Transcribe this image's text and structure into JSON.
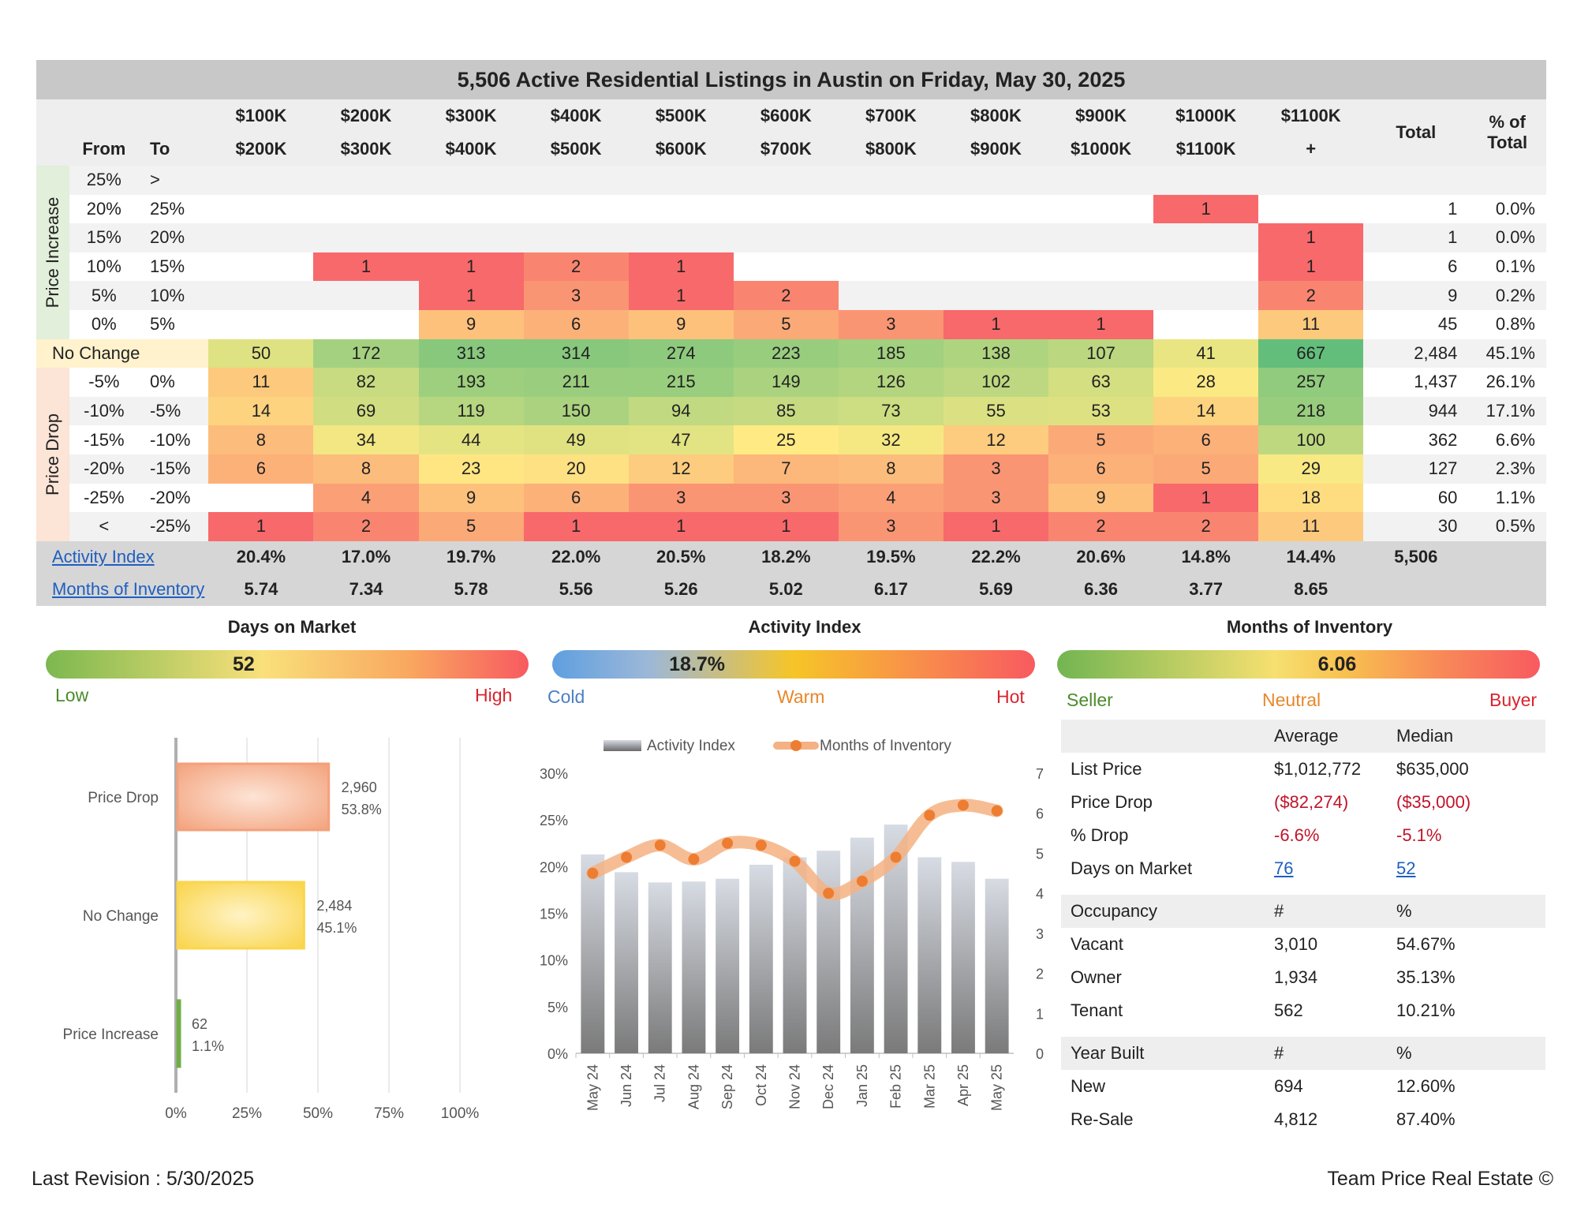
{
  "title": "5,506 Active Residential Listings in Austin on Friday, May 30, 2025",
  "header": {
    "from": "From",
    "to": "To",
    "ranges_top": [
      "$100K",
      "$200K",
      "$300K",
      "$400K",
      "$500K",
      "$600K",
      "$700K",
      "$800K",
      "$900K",
      "$1000K",
      "$1100K"
    ],
    "ranges_bottom": [
      "$200K",
      "$300K",
      "$400K",
      "$500K",
      "$600K",
      "$700K",
      "$800K",
      "$900K",
      "$1000K",
      "$1100K",
      "+"
    ],
    "total": "Total",
    "pct_top": "% of",
    "pct_bottom": "Total"
  },
  "side_labels": {
    "increase": "Price Increase",
    "drop": "Price Drop"
  },
  "rows": [
    {
      "from": "25%",
      "to": ">",
      "cells": [
        "",
        "",
        "",
        "",
        "",
        "",
        "",
        "",
        "",
        "",
        ""
      ],
      "total": "",
      "pct": ""
    },
    {
      "from": "20%",
      "to": "25%",
      "cells": [
        "",
        "",
        "",
        "",
        "",
        "",
        "",
        "",
        "",
        "1",
        ""
      ],
      "total": "1",
      "pct": "0.0%"
    },
    {
      "from": "15%",
      "to": "20%",
      "cells": [
        "",
        "",
        "",
        "",
        "",
        "",
        "",
        "",
        "",
        "",
        "1"
      ],
      "total": "1",
      "pct": "0.0%"
    },
    {
      "from": "10%",
      "to": "15%",
      "cells": [
        "",
        "1",
        "1",
        "2",
        "1",
        "",
        "",
        "",
        "",
        "",
        "1"
      ],
      "total": "6",
      "pct": "0.1%"
    },
    {
      "from": "5%",
      "to": "10%",
      "cells": [
        "",
        "",
        "1",
        "3",
        "1",
        "2",
        "",
        "",
        "",
        "",
        "2"
      ],
      "total": "9",
      "pct": "0.2%"
    },
    {
      "from": "0%",
      "to": "5%",
      "cells": [
        "",
        "",
        "9",
        "6",
        "9",
        "5",
        "3",
        "1",
        "1",
        "",
        "11"
      ],
      "total": "45",
      "pct": "0.8%"
    },
    {
      "from": "No Change",
      "to": "",
      "cells": [
        "50",
        "172",
        "313",
        "314",
        "274",
        "223",
        "185",
        "138",
        "107",
        "41",
        "667"
      ],
      "total": "2,484",
      "pct": "45.1%"
    },
    {
      "from": "-5%",
      "to": "0%",
      "cells": [
        "11",
        "82",
        "193",
        "211",
        "215",
        "149",
        "126",
        "102",
        "63",
        "28",
        "257"
      ],
      "total": "1,437",
      "pct": "26.1%"
    },
    {
      "from": "-10%",
      "to": "-5%",
      "cells": [
        "14",
        "69",
        "119",
        "150",
        "94",
        "85",
        "73",
        "55",
        "53",
        "14",
        "218"
      ],
      "total": "944",
      "pct": "17.1%"
    },
    {
      "from": "-15%",
      "to": "-10%",
      "cells": [
        "8",
        "34",
        "44",
        "49",
        "47",
        "25",
        "32",
        "12",
        "5",
        "6",
        "100"
      ],
      "total": "362",
      "pct": "6.6%"
    },
    {
      "from": "-20%",
      "to": "-15%",
      "cells": [
        "6",
        "8",
        "23",
        "20",
        "12",
        "7",
        "8",
        "3",
        "6",
        "5",
        "29"
      ],
      "total": "127",
      "pct": "2.3%"
    },
    {
      "from": "-25%",
      "to": "-20%",
      "cells": [
        "",
        "4",
        "9",
        "6",
        "3",
        "3",
        "4",
        "3",
        "9",
        "1",
        "18"
      ],
      "total": "60",
      "pct": "1.1%"
    },
    {
      "from": "<",
      "to": "-25%",
      "cells": [
        "1",
        "2",
        "5",
        "1",
        "1",
        "1",
        "3",
        "1",
        "2",
        "2",
        "11"
      ],
      "total": "30",
      "pct": "0.5%"
    }
  ],
  "activity": {
    "label": "Activity Index",
    "values": [
      "20.4%",
      "17.0%",
      "19.7%",
      "22.0%",
      "20.5%",
      "18.2%",
      "19.5%",
      "22.2%",
      "20.6%",
      "14.8%",
      "14.4%"
    ],
    "total": "5,506"
  },
  "inventory": {
    "label": "Months of Inventory",
    "values": [
      "5.74",
      "7.34",
      "5.78",
      "5.56",
      "5.26",
      "5.02",
      "6.17",
      "5.69",
      "6.36",
      "3.77",
      "8.65"
    ]
  },
  "gauges": {
    "dom": {
      "title": "Days on Market",
      "value": "52",
      "level": 0.41,
      "low": "Low",
      "high": "High"
    },
    "ai": {
      "title": "Activity Index",
      "value": "18.7%",
      "level": 0.3,
      "left": "Cold",
      "mid": "Warm",
      "right": "Hot"
    },
    "moi": {
      "title": "Months of Inventory",
      "value": "6.06",
      "level": 0.58,
      "left": "Seller",
      "mid": "Neutral",
      "right": "Buyer"
    }
  },
  "chart_data": [
    {
      "type": "bar",
      "orientation": "horizontal",
      "categories": [
        "Price Drop",
        "No Change",
        "Price Increase"
      ],
      "values": [
        53.8,
        45.1,
        1.1
      ],
      "counts": [
        "2,960",
        "2,484",
        "62"
      ],
      "pct_labels": [
        "53.8%",
        "45.1%",
        "1.1%"
      ],
      "xticks": [
        "0%",
        "25%",
        "50%",
        "75%",
        "100%"
      ],
      "xlim": [
        0,
        100
      ],
      "colors": [
        "#f4a07a",
        "#fcd54c",
        "#70ad47"
      ]
    },
    {
      "type": "bar+line",
      "categories": [
        "May 24",
        "Jun 24",
        "Jul 24",
        "Aug 24",
        "Sep 24",
        "Oct 24",
        "Nov 24",
        "Dec 24",
        "Jan 25",
        "Feb 25",
        "Mar 25",
        "Apr 25",
        "May 25"
      ],
      "series": [
        {
          "name": "Activity Index",
          "axis": "left",
          "values": [
            21.3,
            19.4,
            18.3,
            18.4,
            18.7,
            20.2,
            21.0,
            21.7,
            23.1,
            24.5,
            21.0,
            20.5,
            18.7
          ]
        },
        {
          "name": "Months of Inventory",
          "axis": "right",
          "values": [
            4.5,
            4.9,
            5.2,
            4.85,
            5.25,
            5.2,
            4.8,
            4.0,
            4.3,
            4.9,
            5.95,
            6.2,
            6.06
          ]
        }
      ],
      "yticks_left": [
        "0%",
        "5%",
        "10%",
        "15%",
        "20%",
        "25%",
        "30%"
      ],
      "ylim_left": [
        0,
        30
      ],
      "yticks_right": [
        "0",
        "1",
        "2",
        "3",
        "4",
        "5",
        "6",
        "7"
      ],
      "ylim_right": [
        0,
        7
      ]
    }
  ],
  "stats": {
    "col_avg": "Average",
    "col_med": "Median",
    "price_rows": [
      {
        "label": "List Price",
        "avg": "$1,012,772",
        "med": "$635,000",
        "red": false
      },
      {
        "label": "Price Drop",
        "avg": "($82,274)",
        "med": "($35,000)",
        "red": true
      },
      {
        "label": "% Drop",
        "avg": "-6.6%",
        "med": "-5.1%",
        "red": true
      },
      {
        "label": "Days on Market",
        "avg": "76",
        "med": "52",
        "red": false,
        "link": true
      }
    ],
    "occ_header": {
      "label": "Occupancy",
      "a": "#",
      "b": "%"
    },
    "occ_rows": [
      {
        "label": "Vacant",
        "a": "3,010",
        "b": "54.67%"
      },
      {
        "label": "Owner",
        "a": "1,934",
        "b": "35.13%"
      },
      {
        "label": "Tenant",
        "a": "562",
        "b": "10.21%"
      }
    ],
    "yb_header": {
      "label": "Year Built",
      "a": "#",
      "b": "%"
    },
    "yb_rows": [
      {
        "label": "New",
        "a": "694",
        "b": "12.60%"
      },
      {
        "label": "Re-Sale",
        "a": "4,812",
        "b": "87.40%"
      }
    ]
  },
  "footer": {
    "revision": "Last Revision : 5/30/2025",
    "brand": "Team Price Real Estate ©"
  },
  "colors": {
    "cold_red": "#f8696b",
    "hot_green": "#63be7b",
    "mid_yellow": "#ffeb84",
    "link": "#1f5fbf",
    "header_gray": "#c8c8c8"
  }
}
